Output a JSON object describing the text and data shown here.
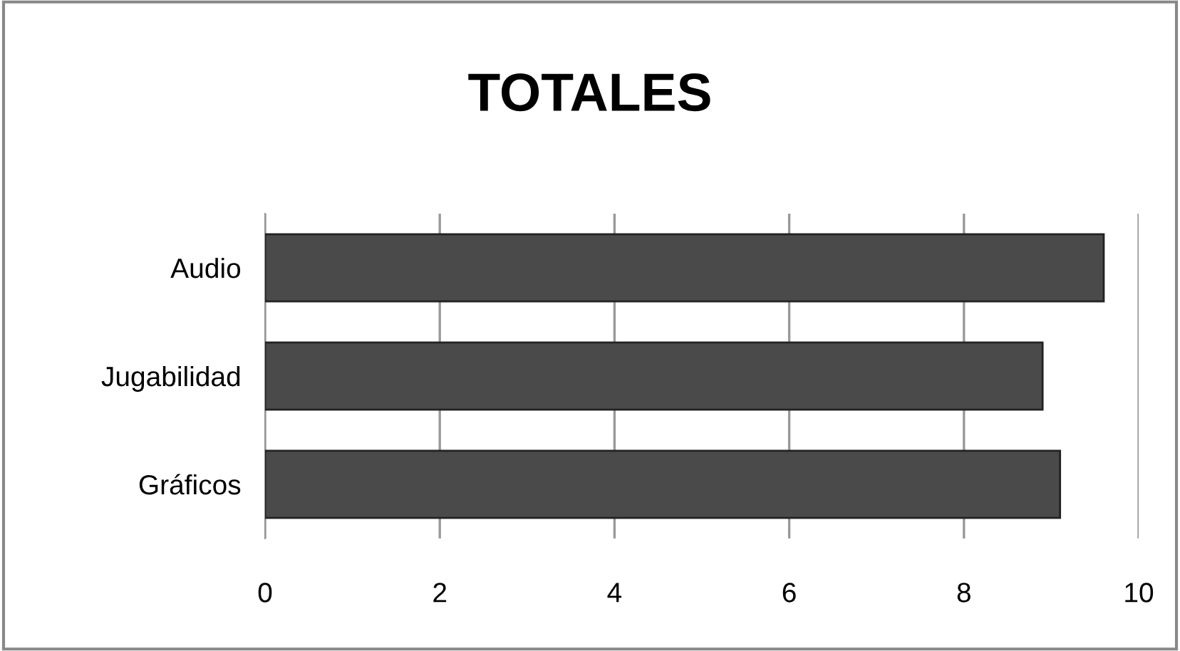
{
  "chart_data": {
    "type": "bar",
    "orientation": "horizontal",
    "title": "TOTALES",
    "categories": [
      "Audio",
      "Jugabilidad",
      "Gráficos"
    ],
    "values": [
      9.6,
      8.9,
      9.1
    ],
    "color": "#4a4a4a",
    "xlim": [
      0,
      10
    ],
    "xticks": [
      0,
      2,
      4,
      6,
      8,
      10
    ],
    "grid": "x",
    "legend": false
  }
}
